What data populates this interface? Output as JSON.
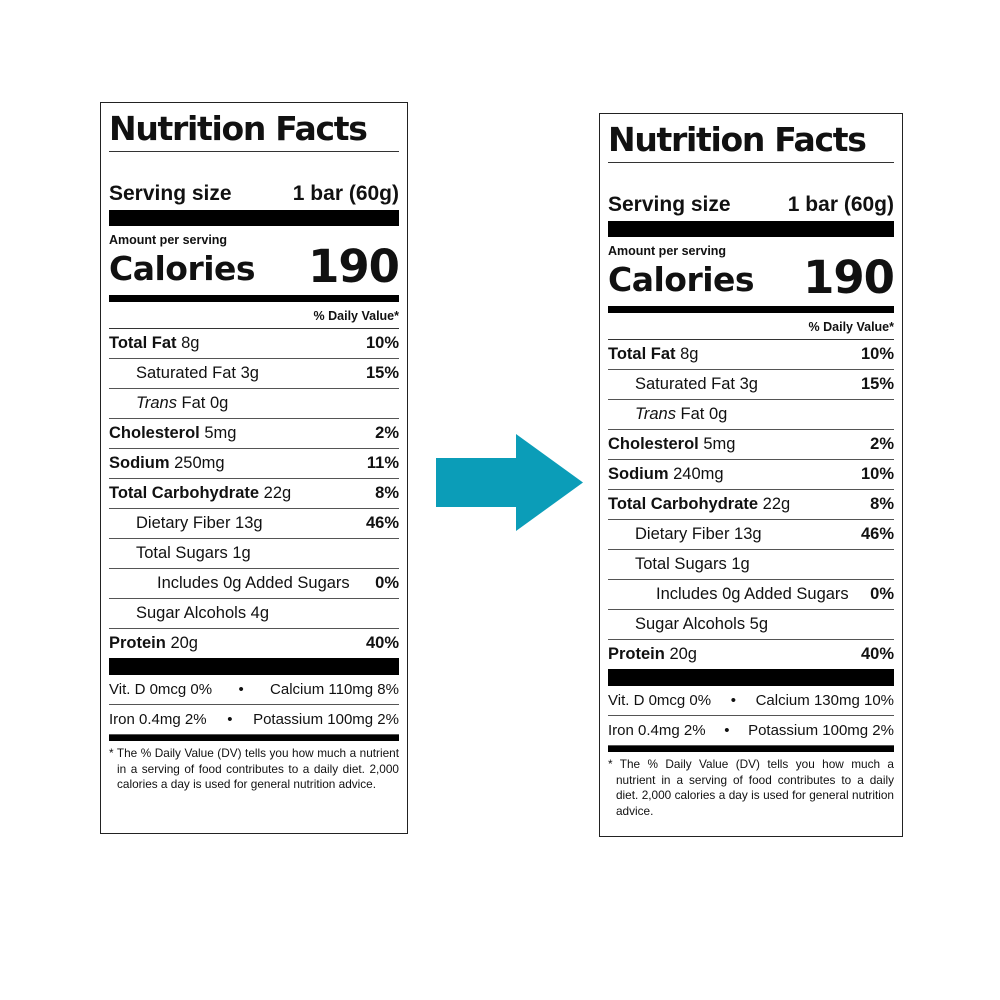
{
  "labels": [
    {
      "title": "Nutrition Facts",
      "serving_label": "Serving size",
      "serving_value": "1 bar (60g)",
      "amount_per_serving": "Amount per serving",
      "calories_label": "Calories",
      "calories_value": "190",
      "dv_header": "% Daily Value*",
      "nutrients": [
        {
          "name": "Total Fat",
          "amount": "8g",
          "dv": "10%",
          "bold": true,
          "indent": 0
        },
        {
          "name": "Saturated Fat",
          "amount": "3g",
          "dv": "15%",
          "bold": false,
          "indent": 1
        },
        {
          "name": "Trans",
          "amount": "Fat 0g",
          "dv": "",
          "bold": false,
          "indent": 1,
          "italic": true
        },
        {
          "name": "Cholesterol",
          "amount": "5mg",
          "dv": "2%",
          "bold": true,
          "indent": 0
        },
        {
          "name": "Sodium",
          "amount": "250mg",
          "dv": "11%",
          "bold": true,
          "indent": 0
        },
        {
          "name": "Total Carbohydrate",
          "amount": "22g",
          "dv": "8%",
          "bold": true,
          "indent": 0
        },
        {
          "name": "Dietary Fiber",
          "amount": "13g",
          "dv": "46%",
          "bold": false,
          "indent": 1
        },
        {
          "name": "Total Sugars",
          "amount": "1g",
          "dv": "",
          "bold": false,
          "indent": 1
        },
        {
          "name": "Includes",
          "amount": "0g Added Sugars",
          "dv": "0%",
          "bold": false,
          "indent": 2
        },
        {
          "name": "Sugar Alcohols",
          "amount": "4g",
          "dv": "",
          "bold": false,
          "indent": 1
        },
        {
          "name": "Protein",
          "amount": "20g",
          "dv": "40%",
          "bold": true,
          "indent": 0
        }
      ],
      "vitamins": [
        {
          "left": "Vit. D 0mcg 0%",
          "right": "Calcium 110mg 8%"
        },
        {
          "left": "Iron 0.4mg 2%",
          "right": "Potassium 100mg 2%"
        }
      ],
      "footnote": "* The % Daily Value (DV) tells you how much a nutrient in a serving of food contributes to a daily diet. 2,000 calories a day is used for general nutrition advice."
    },
    {
      "title": "Nutrition Facts",
      "serving_label": "Serving size",
      "serving_value": "1 bar (60g)",
      "amount_per_serving": "Amount per serving",
      "calories_label": "Calories",
      "calories_value": "190",
      "dv_header": "% Daily Value*",
      "nutrients": [
        {
          "name": "Total Fat",
          "amount": "8g",
          "dv": "10%",
          "bold": true,
          "indent": 0
        },
        {
          "name": "Saturated Fat",
          "amount": "3g",
          "dv": "15%",
          "bold": false,
          "indent": 1
        },
        {
          "name": "Trans",
          "amount": "Fat 0g",
          "dv": "",
          "bold": false,
          "indent": 1,
          "italic": true
        },
        {
          "name": "Cholesterol",
          "amount": "5mg",
          "dv": "2%",
          "bold": true,
          "indent": 0
        },
        {
          "name": "Sodium",
          "amount": "240mg",
          "dv": "10%",
          "bold": true,
          "indent": 0
        },
        {
          "name": "Total Carbohydrate",
          "amount": "22g",
          "dv": "8%",
          "bold": true,
          "indent": 0
        },
        {
          "name": "Dietary Fiber",
          "amount": "13g",
          "dv": "46%",
          "bold": false,
          "indent": 1
        },
        {
          "name": "Total Sugars",
          "amount": "1g",
          "dv": "",
          "bold": false,
          "indent": 1
        },
        {
          "name": "Includes",
          "amount": "0g Added Sugars",
          "dv": "0%",
          "bold": false,
          "indent": 2
        },
        {
          "name": "Sugar Alcohols",
          "amount": "5g",
          "dv": "",
          "bold": false,
          "indent": 1
        },
        {
          "name": "Protein",
          "amount": "20g",
          "dv": "40%",
          "bold": true,
          "indent": 0
        }
      ],
      "vitamins": [
        {
          "left": "Vit. D 0mcg 0%",
          "right": "Calcium 130mg 10%"
        },
        {
          "left": "Iron 0.4mg 2%",
          "right": "Potassium 100mg 2%"
        }
      ],
      "footnote": "* The % Daily Value (DV) tells you how much a nutrient in a serving of food contributes to a daily diet. 2,000 calories a day is used for general nutrition advice."
    }
  ],
  "arrow": {
    "icon": "arrow-right-icon",
    "color": "#0b9db8"
  }
}
